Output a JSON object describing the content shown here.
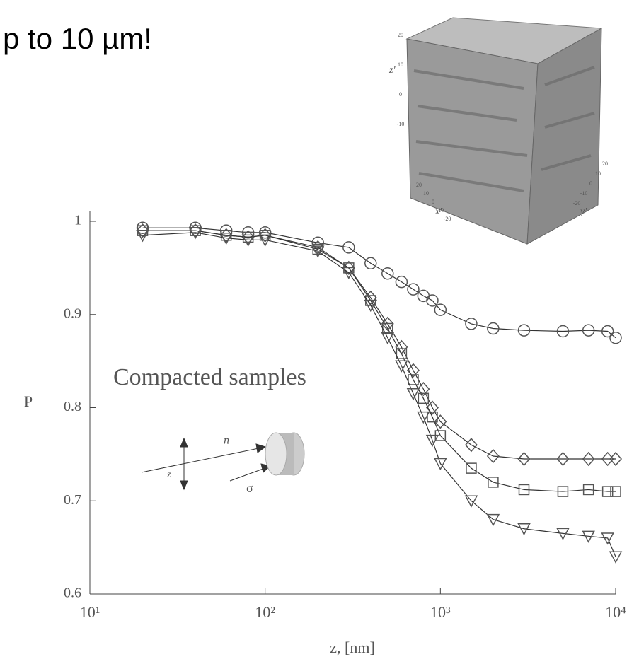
{
  "heading": "p to 10 µm!",
  "chart_data": {
    "type": "line",
    "xlabel": "z, [nm]",
    "ylabel": "P",
    "annotation": "Compacted samples",
    "diagram_labels": [
      "n",
      "z",
      "σ"
    ],
    "inset": {
      "axis_labels": [
        "z'",
        "x'",
        "y'"
      ],
      "z_ticks": [
        "20",
        "10",
        "0",
        "-10"
      ],
      "x_ticks": [
        "20",
        "10",
        "0",
        "-10",
        "-20"
      ],
      "y_ticks": [
        "20",
        "10",
        "0",
        "-10",
        "-20"
      ]
    },
    "xscale": "log",
    "xlim": [
      10,
      10000
    ],
    "xticks": [
      {
        "value": 10,
        "label": "10¹"
      },
      {
        "value": 100,
        "label": "10²"
      },
      {
        "value": 1000,
        "label": "10³"
      },
      {
        "value": 10000,
        "label": "10⁴"
      }
    ],
    "ylim": [
      0.6,
      1.0
    ],
    "yticks": [
      {
        "value": 0.6,
        "label": "0.6"
      },
      {
        "value": 0.7,
        "label": "0.7"
      },
      {
        "value": 0.8,
        "label": "0.8"
      },
      {
        "value": 0.9,
        "label": "0.9"
      },
      {
        "value": 1.0,
        "label": "1"
      }
    ],
    "x": [
      20,
      40,
      60,
      80,
      100,
      200,
      300,
      400,
      500,
      600,
      700,
      800,
      900,
      1000,
      1500,
      2000,
      3000,
      5000,
      7000,
      9000,
      10000
    ],
    "series": [
      {
        "marker": "circle",
        "color": "#555555",
        "values": [
          0.993,
          0.993,
          0.99,
          0.988,
          0.988,
          0.977,
          0.972,
          0.955,
          0.944,
          0.935,
          0.927,
          0.92,
          0.915,
          0.905,
          0.89,
          0.885,
          0.883,
          0.882,
          0.883,
          0.882,
          0.875
        ]
      },
      {
        "marker": "diamond",
        "color": "#555555",
        "values": [
          0.99,
          0.99,
          0.985,
          0.983,
          0.985,
          0.972,
          0.95,
          0.918,
          0.89,
          0.865,
          0.84,
          0.82,
          0.8,
          0.785,
          0.76,
          0.748,
          0.745,
          0.745,
          0.745,
          0.745,
          0.745
        ]
      },
      {
        "marker": "square",
        "color": "#555555",
        "values": [
          0.99,
          0.99,
          0.985,
          0.983,
          0.985,
          0.97,
          0.95,
          0.915,
          0.885,
          0.858,
          0.83,
          0.81,
          0.79,
          0.77,
          0.735,
          0.72,
          0.712,
          0.71,
          0.712,
          0.71,
          0.71
        ]
      },
      {
        "marker": "triangle",
        "color": "#555555",
        "values": [
          0.985,
          0.988,
          0.982,
          0.98,
          0.98,
          0.968,
          0.945,
          0.91,
          0.875,
          0.845,
          0.815,
          0.79,
          0.765,
          0.74,
          0.7,
          0.68,
          0.67,
          0.665,
          0.662,
          0.66,
          0.64
        ]
      }
    ]
  }
}
